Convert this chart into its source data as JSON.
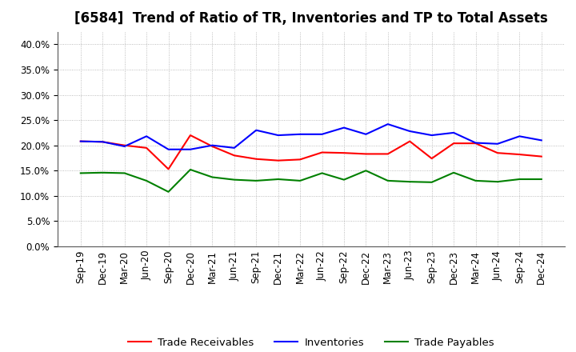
{
  "title": "[6584]  Trend of Ratio of TR, Inventories and TP to Total Assets",
  "x_labels": [
    "Sep-19",
    "Dec-19",
    "Mar-20",
    "Jun-20",
    "Sep-20",
    "Dec-20",
    "Mar-21",
    "Jun-21",
    "Sep-21",
    "Dec-21",
    "Mar-22",
    "Jun-22",
    "Sep-22",
    "Dec-22",
    "Mar-23",
    "Jun-23",
    "Sep-23",
    "Dec-23",
    "Mar-24",
    "Jun-24",
    "Sep-24",
    "Dec-24"
  ],
  "trade_receivables": [
    0.208,
    0.207,
    0.2,
    0.195,
    0.153,
    0.22,
    0.198,
    0.18,
    0.173,
    0.17,
    0.172,
    0.186,
    0.185,
    0.183,
    0.183,
    0.208,
    0.174,
    0.204,
    0.204,
    0.185,
    0.182,
    0.178
  ],
  "inventories": [
    0.208,
    0.207,
    0.198,
    0.218,
    0.192,
    0.192,
    0.2,
    0.195,
    0.23,
    0.22,
    0.222,
    0.222,
    0.235,
    0.222,
    0.242,
    0.228,
    0.22,
    0.225,
    0.205,
    0.203,
    0.218,
    0.21
  ],
  "trade_payables": [
    0.145,
    0.146,
    0.145,
    0.13,
    0.108,
    0.152,
    0.137,
    0.132,
    0.13,
    0.133,
    0.13,
    0.145,
    0.132,
    0.15,
    0.13,
    0.128,
    0.127,
    0.146,
    0.13,
    0.128,
    0.133,
    0.133
  ],
  "tr_color": "#ff0000",
  "inv_color": "#0000ff",
  "tp_color": "#008000",
  "ylim": [
    0.0,
    0.425
  ],
  "yticks": [
    0.0,
    0.05,
    0.1,
    0.15,
    0.2,
    0.25,
    0.3,
    0.35,
    0.4
  ],
  "background_color": "#ffffff",
  "grid_color": "#aaaaaa",
  "title_fontsize": 12,
  "tick_fontsize": 8.5,
  "legend_fontsize": 9.5
}
